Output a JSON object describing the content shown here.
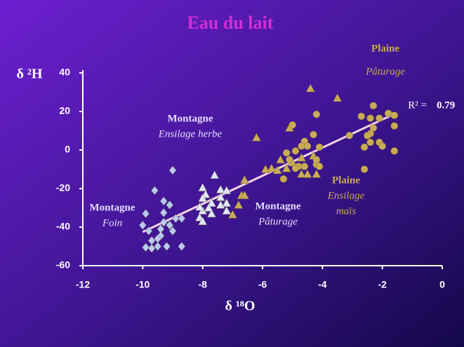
{
  "chart_data": {
    "type": "scatter",
    "title": "Eau du lait",
    "title_color": "#d42ed8",
    "y_label": "δ ²H",
    "x_label": "δ ¹⁸O",
    "xlim": [
      -12,
      0
    ],
    "xticks": [
      -12,
      -10,
      -8,
      -6,
      -4,
      -2,
      0
    ],
    "ylim": [
      -60,
      40
    ],
    "yticks": [
      -60,
      -40,
      -20,
      0,
      20,
      40
    ],
    "grid": false,
    "series": [
      {
        "marker": "diamond",
        "color": "#b9c9f2",
        "x": [
          -9.0,
          -9.6,
          -9.9,
          -10.0,
          -9.8,
          -9.7,
          -9.9,
          -9.7,
          -9.5,
          -9.2,
          -8.7,
          -9.3,
          -9.1,
          -9.3,
          -9.4,
          -9.4,
          -9.1,
          -8.9,
          -9.0,
          -8.7,
          -9.3,
          -9.5
        ],
        "values": [
          -10.5,
          -21,
          -33,
          -39,
          -42,
          -47,
          -50.5,
          -51,
          -50,
          -50,
          -50,
          -26.5,
          -28.5,
          -37.5,
          -41,
          -44.5,
          -39,
          -35.5,
          -42,
          -35.5,
          -32.5,
          -46
        ]
      },
      {
        "marker": "triangle",
        "color": "#dfe6ff",
        "x": [
          -7.6,
          -8.0,
          -7.9,
          -8.0,
          -7.7,
          -7.4,
          -7.4,
          -7.2,
          -8.1,
          -8.0,
          -7.7,
          -7.4,
          -7.2,
          -8.0,
          -7.8,
          -8.1,
          -7.2
        ],
        "values": [
          -13,
          -19.5,
          -23,
          -25,
          -27.5,
          -20.5,
          -24.5,
          -21,
          -35,
          -37,
          -33,
          -28.5,
          -31.5,
          -31.5,
          -30,
          -29.5,
          -27.5
        ]
      },
      {
        "marker": "triangle",
        "color": "#c9ab55",
        "x": [
          -4.4,
          -3.5,
          -6.2,
          -5.1,
          -6.6,
          -6.7,
          -6.6,
          -6.8,
          -7.0,
          -5.9,
          -5.7,
          -5.4,
          -5.2,
          -4.7,
          -4.5,
          -4.2,
          -5.0,
          -4.7,
          -4.3,
          -5.5
        ],
        "values": [
          32,
          27,
          6.5,
          11.5,
          -15.5,
          -23.5,
          -23.5,
          -28.5,
          -33.5,
          -10,
          -9.5,
          -5,
          -9.5,
          -12.5,
          -12.5,
          -12.5,
          -6.5,
          -4,
          -3,
          -10.5
        ]
      },
      {
        "marker": "circle",
        "color": "#c9ab55",
        "x": [
          -5.0,
          -4.2,
          -2.3,
          -2.7,
          -2.4,
          -2.1,
          -1.8,
          -1.6,
          -3.1,
          -2.4,
          -2.3,
          -2.5,
          -2.4,
          -2.1,
          -2.0,
          -2.6,
          -1.6,
          -1.6,
          -2.6,
          -4.3,
          -4.1,
          -4.6,
          -4.7,
          -4.9,
          -5.2,
          -5.1,
          -4.8,
          -4.6,
          -4.2,
          -4.1,
          -5.3,
          -4.5,
          -4.2,
          -4.9
        ],
        "values": [
          13,
          18.5,
          23,
          17.5,
          16.5,
          16.5,
          19,
          18,
          7.5,
          8.5,
          11.5,
          7.5,
          4,
          4,
          2,
          1.5,
          -0.5,
          12.5,
          -10,
          8,
          1.5,
          4.5,
          2,
          -0.5,
          -1.5,
          -5,
          -8.5,
          -8.5,
          -7.5,
          -8.5,
          -15,
          2,
          -5,
          -9.5
        ]
      }
    ],
    "trendline": {
      "color": "#f7d2e4",
      "x": [
        -10,
        -1.7
      ],
      "y": [
        -42.5,
        18
      ]
    },
    "r2_label": "R² =",
    "r2": 0.79,
    "annotations": [
      {
        "color": "#c9ab55",
        "lines": [
          "Plaine",
          "Pâturage"
        ]
      },
      {
        "color": "#e4dcff",
        "lines": [
          "Montagne",
          "Ensilage herbe"
        ]
      },
      {
        "color": "#e4dcff",
        "lines": [
          "Montagne",
          "Foin"
        ]
      },
      {
        "color": "#e4dcff",
        "lines": [
          "Montagne",
          "Pâturage"
        ]
      },
      {
        "color": "#c9ab55",
        "lines": [
          "Plaine",
          "Ensilage",
          "maïs"
        ]
      }
    ]
  }
}
